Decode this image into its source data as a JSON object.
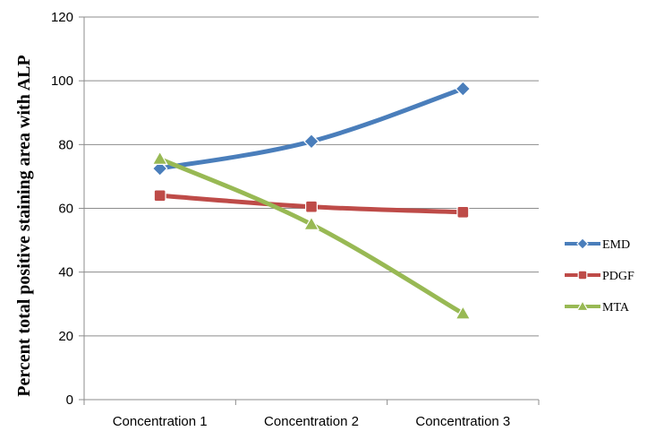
{
  "chart_data": {
    "type": "line",
    "title": "",
    "xlabel": "",
    "ylabel": "Percent total positive staining area with ALP",
    "categories": [
      "Concentration 1",
      "Concentration 2",
      "Concentration 3"
    ],
    "ylim": [
      0,
      120
    ],
    "yticks": [
      0,
      20,
      40,
      60,
      80,
      100,
      120
    ],
    "grid": true,
    "legend_position": "right",
    "series": [
      {
        "name": "EMD",
        "values": [
          72.5,
          81,
          97.5
        ],
        "color": "#4a7ebb",
        "marker": "diamond"
      },
      {
        "name": "PDGF",
        "values": [
          64,
          60.5,
          58.8
        ],
        "color": "#be4b48",
        "marker": "square"
      },
      {
        "name": "MTA",
        "values": [
          75.5,
          55,
          27
        ],
        "color": "#98b954",
        "marker": "triangle"
      }
    ]
  }
}
